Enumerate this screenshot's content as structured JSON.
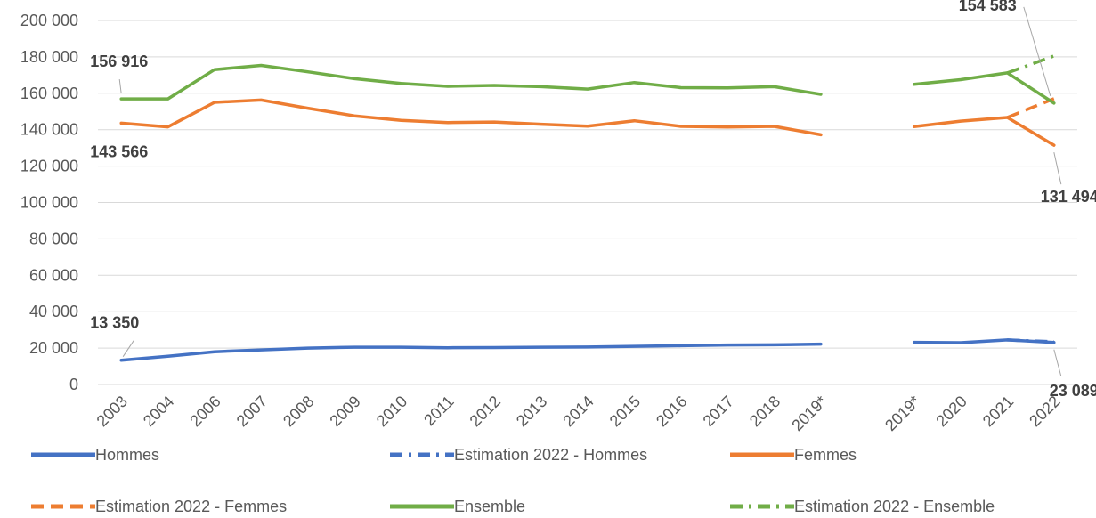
{
  "chart_data": {
    "type": "line",
    "title": "",
    "xlabel": "",
    "ylabel": "",
    "ylim": [
      0,
      200000
    ],
    "y_ticks": [
      0,
      20000,
      40000,
      60000,
      80000,
      100000,
      120000,
      140000,
      160000,
      180000,
      200000
    ],
    "y_tick_labels": [
      "0",
      "20 000",
      "40 000",
      "60 000",
      "80 000",
      "100 000",
      "120 000",
      "140 000",
      "160 000",
      "180 000",
      "200 000"
    ],
    "categories": [
      "2003",
      "2004",
      "2006",
      "2007",
      "2008",
      "2009",
      "2010",
      "2011",
      "2012",
      "2013",
      "2014",
      "2015",
      "2016",
      "2017",
      "2018",
      "2019*",
      "",
      "2019*",
      "2020",
      "2021",
      "2022"
    ],
    "grid": true,
    "legend_position": "bottom",
    "series": [
      {
        "name": "Hommes",
        "color": "#4472C4",
        "style": "solid",
        "values": [
          13350,
          15500,
          18000,
          19000,
          20000,
          20500,
          20500,
          20200,
          20300,
          20500,
          20600,
          21000,
          21300,
          21700,
          21800,
          22200,
          null,
          23200,
          23000,
          24500,
          23089
        ]
      },
      {
        "name": "Estimation  2022 - Hommes",
        "color": "#4472C4",
        "style": "dashdot",
        "values": [
          null,
          null,
          null,
          null,
          null,
          null,
          null,
          null,
          null,
          null,
          null,
          null,
          null,
          null,
          null,
          null,
          null,
          null,
          null,
          24500,
          23500
        ]
      },
      {
        "name": "Femmes",
        "color": "#ED7D31",
        "style": "solid",
        "values": [
          143566,
          141500,
          155000,
          156300,
          151800,
          147600,
          145100,
          143900,
          144200,
          143000,
          141900,
          144900,
          141800,
          141400,
          141800,
          137200,
          null,
          141700,
          144700,
          146700,
          131494
        ]
      },
      {
        "name": "Estimation  2022 - Femmes",
        "color": "#ED7D31",
        "style": "dashed",
        "values": [
          null,
          null,
          null,
          null,
          null,
          null,
          null,
          null,
          null,
          null,
          null,
          null,
          null,
          null,
          null,
          null,
          null,
          null,
          null,
          146700,
          157000
        ]
      },
      {
        "name": "Ensemble",
        "color": "#70AD47",
        "style": "solid",
        "values": [
          156916,
          156900,
          173000,
          175300,
          171800,
          168000,
          165400,
          163800,
          164300,
          163600,
          162300,
          165900,
          163100,
          163000,
          163600,
          159400,
          null,
          164900,
          167500,
          171200,
          154583
        ]
      },
      {
        "name": "Estimation  2022 - Ensemble",
        "color": "#70AD47",
        "style": "dashdot",
        "values": [
          null,
          null,
          null,
          null,
          null,
          null,
          null,
          null,
          null,
          null,
          null,
          null,
          null,
          null,
          null,
          null,
          null,
          null,
          null,
          171200,
          180500
        ]
      }
    ],
    "data_labels": [
      {
        "series": "Ensemble",
        "index": 0,
        "text": "156 916"
      },
      {
        "series": "Femmes",
        "index": 0,
        "text": "143 566"
      },
      {
        "series": "Hommes",
        "index": 0,
        "text": "13 350"
      },
      {
        "series": "Ensemble",
        "index": 20,
        "text": "154 583"
      },
      {
        "series": "Femmes",
        "index": 20,
        "text": "131 494"
      },
      {
        "series": "Hommes",
        "index": 20,
        "text": "23 089"
      }
    ]
  }
}
